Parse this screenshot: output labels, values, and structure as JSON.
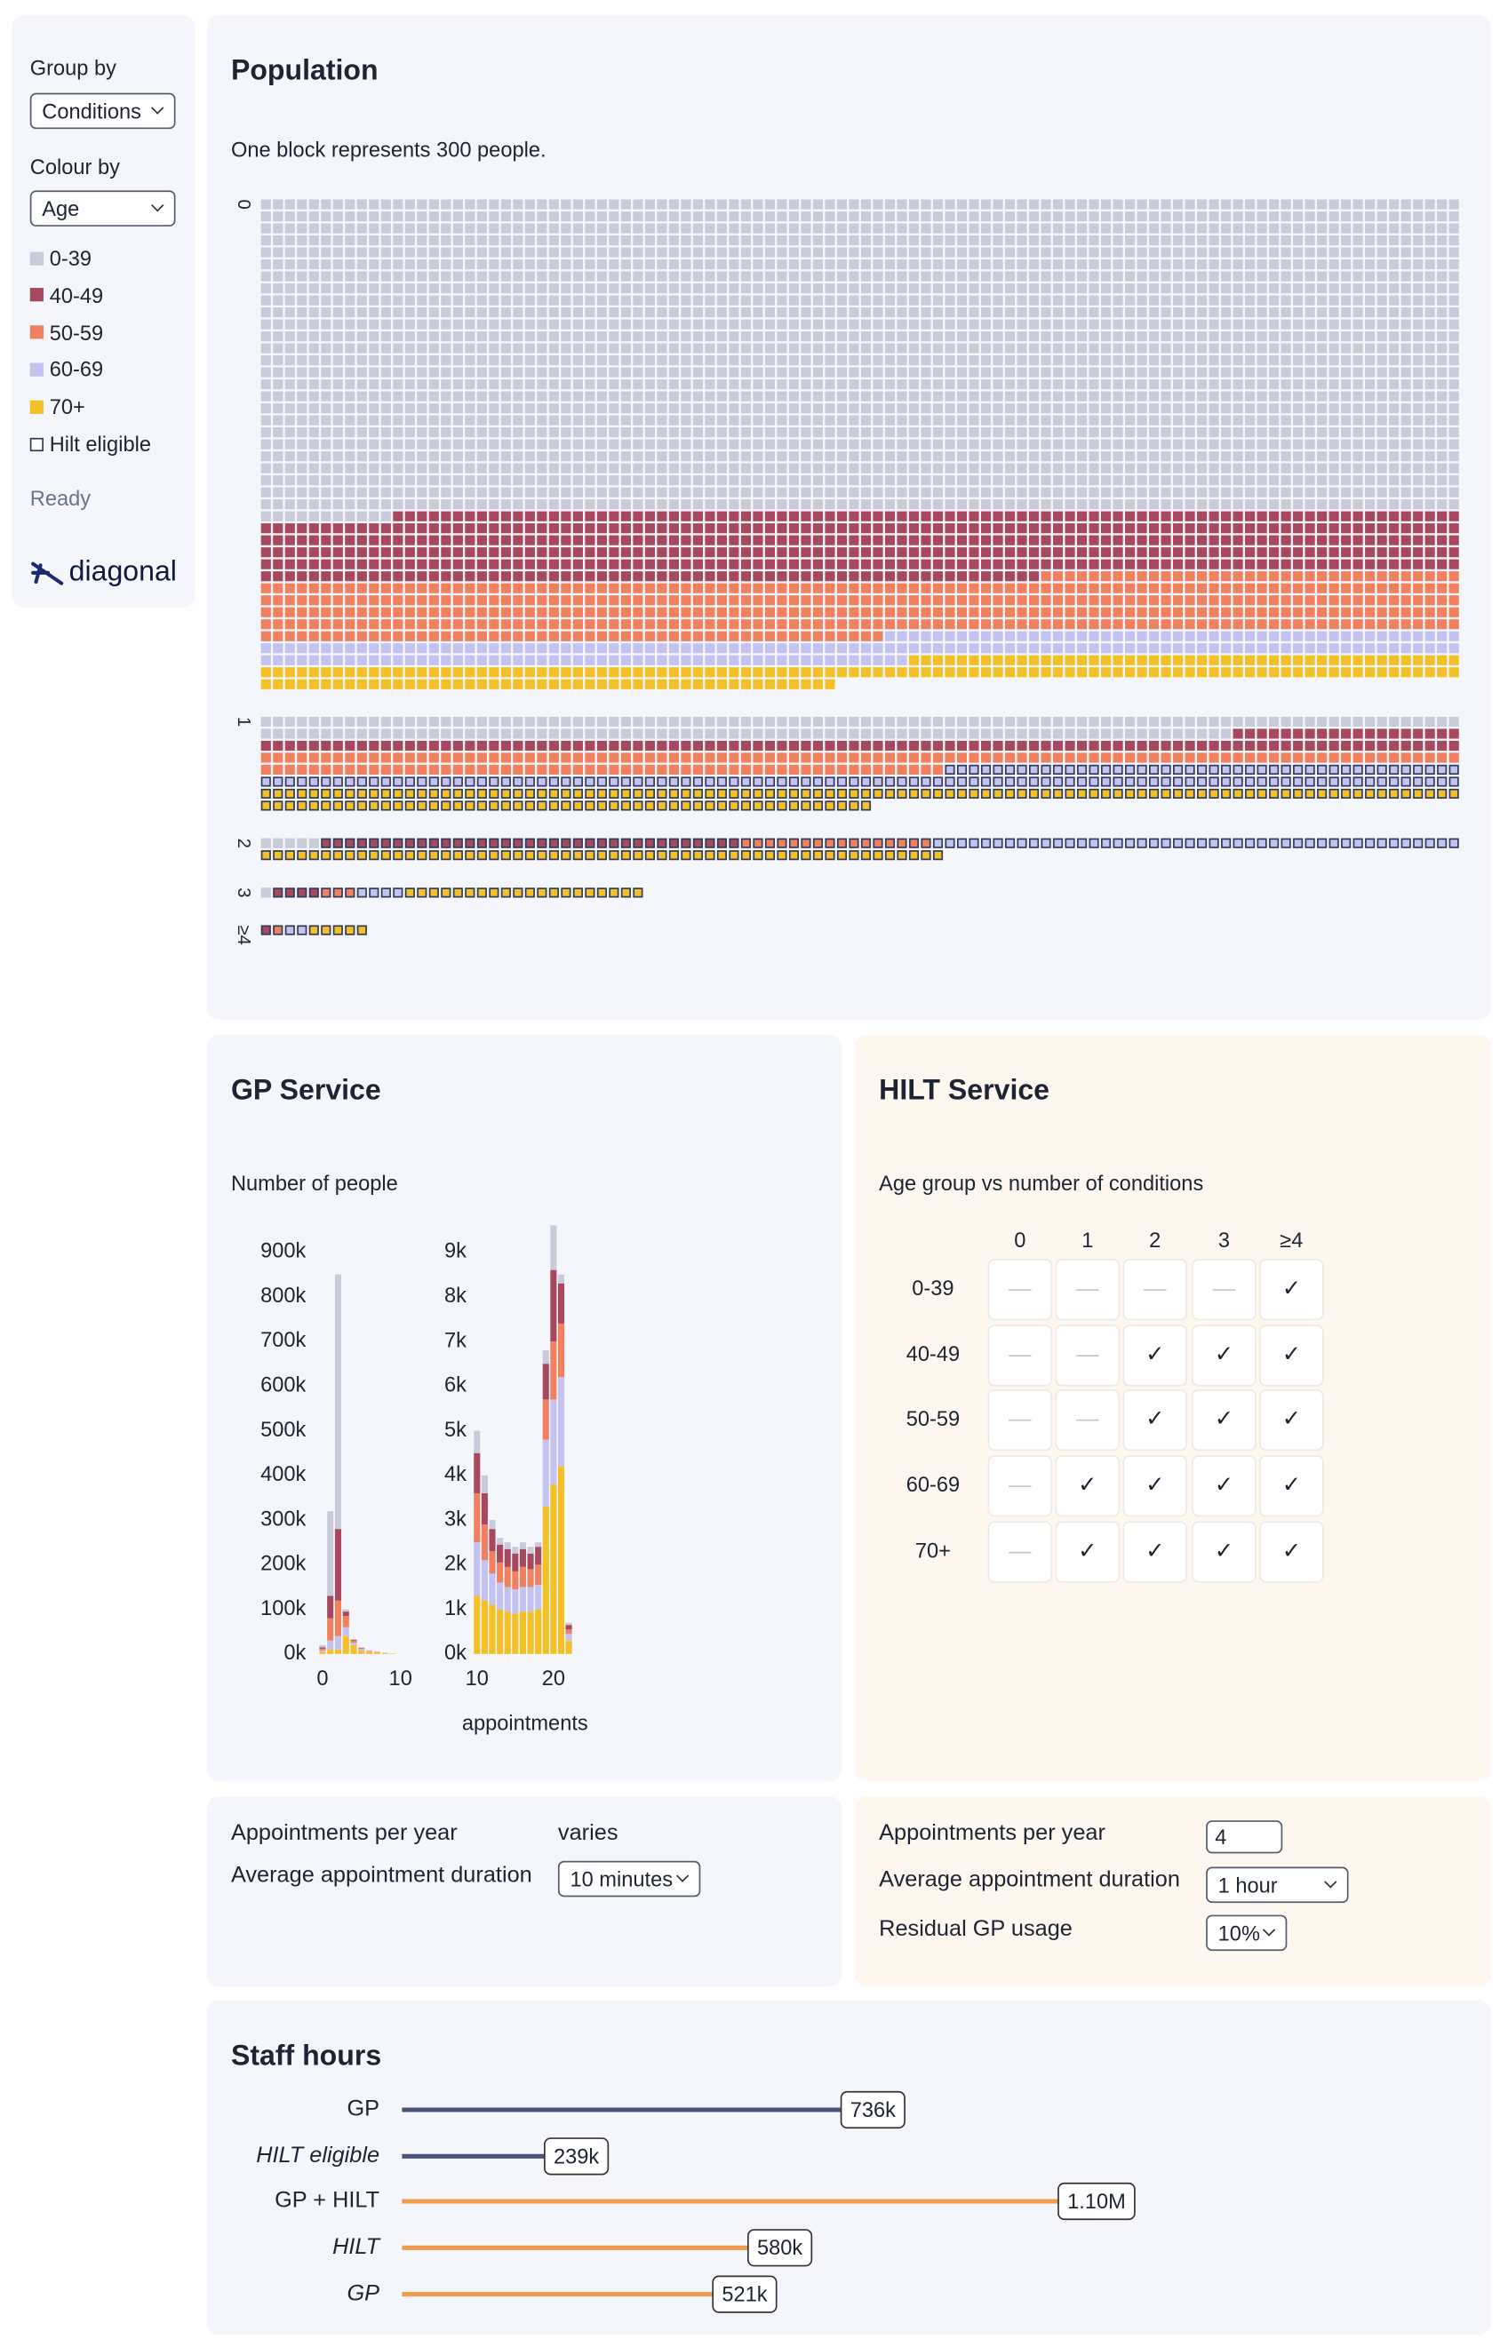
{
  "sidebar": {
    "group_by_label": "Group by",
    "group_by": "Conditions",
    "colour_by_label": "Colour by",
    "colour_by": "Age",
    "status": "Ready",
    "logo": "diagonal"
  },
  "gp_service": {
    "title": "GP Service",
    "subtitle": "Number of people",
    "x_label": "appointments"
  },
  "hilt_service": {
    "title": "HILT Service",
    "subtitle": "Age group vs number of conditions",
    "columns": [
      "0",
      "1",
      "2",
      "3",
      "≥4"
    ],
    "rows": [
      {
        "label": "0-39",
        "cells": [
          "—",
          "—",
          "—",
          "—",
          "✓"
        ]
      },
      {
        "label": "40-49",
        "cells": [
          "—",
          "—",
          "✓",
          "✓",
          "✓"
        ]
      },
      {
        "label": "50-59",
        "cells": [
          "—",
          "—",
          "✓",
          "✓",
          "✓"
        ]
      },
      {
        "label": "60-69",
        "cells": [
          "—",
          "✓",
          "✓",
          "✓",
          "✓"
        ]
      },
      {
        "label": "70+",
        "cells": [
          "—",
          "✓",
          "✓",
          "✓",
          "✓"
        ]
      }
    ]
  },
  "gp_controls": {
    "rows": [
      {
        "label": "Appointments per year",
        "value": "varies"
      },
      {
        "label": "Average appointment duration",
        "value": "10 minutes"
      }
    ]
  },
  "hilt_controls": {
    "rows": [
      {
        "label": "Appointments per year",
        "value": "4"
      },
      {
        "label": "Average appointment duration",
        "value": "1 hour"
      },
      {
        "label": "Residual GP usage",
        "value": "10%"
      }
    ]
  },
  "chart_data": [
    {
      "type": "waffle",
      "title": "Population",
      "subtitle": "One block represents 300 people.",
      "categories": [
        "0",
        "1",
        "2",
        "3",
        "≥4"
      ],
      "series": [
        {
          "name": "0-39",
          "color": "#c9cbd9",
          "values": [
            2611,
            181,
            5,
            1,
            0
          ],
          "eligible": [
            false,
            false,
            false,
            false,
            true
          ]
        },
        {
          "name": "40-49",
          "color": "#a8485e",
          "values": [
            554,
            119,
            35,
            4,
            1
          ],
          "eligible": [
            false,
            false,
            true,
            true,
            true
          ]
        },
        {
          "name": "50-59",
          "color": "#f0805e",
          "values": [
            487,
            157,
            16,
            3,
            1
          ],
          "eligible": [
            false,
            false,
            true,
            true,
            true
          ]
        },
        {
          "name": "60-69",
          "color": "#c4c2f0",
          "values": [
            202,
            143,
            44,
            4,
            2
          ],
          "eligible": [
            false,
            true,
            true,
            true,
            true
          ]
        },
        {
          "name": "70+",
          "color": "#f4c025",
          "values": [
            194,
            151,
            57,
            20,
            5
          ],
          "eligible": [
            false,
            true,
            true,
            true,
            true
          ]
        }
      ],
      "outline_name": "Hilt eligible",
      "outline_color": "#2e3a5c"
    },
    {
      "type": "stacked-histogram",
      "x": [
        0,
        1,
        2,
        3,
        4,
        5,
        6,
        7,
        8,
        9
      ],
      "xlim": [
        -1,
        10.5
      ],
      "xticks": [
        0,
        10
      ],
      "ylim": [
        0,
        900000
      ],
      "yticks": [
        {
          "value": 0,
          "label": "0k"
        },
        {
          "value": 100000,
          "label": "100k"
        },
        {
          "value": 200000,
          "label": "200k"
        },
        {
          "value": 300000,
          "label": "300k"
        },
        {
          "value": 400000,
          "label": "400k"
        },
        {
          "value": 500000,
          "label": "500k"
        },
        {
          "value": 600000,
          "label": "600k"
        },
        {
          "value": 700000,
          "label": "700k"
        },
        {
          "value": 800000,
          "label": "800k"
        },
        {
          "value": 900000,
          "label": "900k"
        }
      ],
      "series": [
        {
          "color": "#f4c025",
          "values": [
            5000,
            10000,
            10000,
            40000,
            20000,
            8000,
            5000,
            3000,
            2000,
            1000
          ]
        },
        {
          "color": "#c4c2f0",
          "values": [
            3000,
            20000,
            30000,
            20000,
            5000,
            3000,
            2000,
            1000,
            1000,
            0
          ]
        },
        {
          "color": "#f0805e",
          "values": [
            4000,
            50000,
            80000,
            25000,
            5000,
            2000,
            1000,
            1000,
            0,
            0
          ]
        },
        {
          "color": "#a8485e",
          "values": [
            3000,
            50000,
            160000,
            10000,
            2000,
            1000,
            0,
            0,
            0,
            0
          ]
        },
        {
          "color": "#c9cbd9",
          "values": [
            5000,
            190000,
            570000,
            5000,
            0,
            0,
            0,
            0,
            0,
            0
          ]
        }
      ]
    },
    {
      "type": "stacked-histogram",
      "x": [
        10,
        11,
        12,
        13,
        14,
        15,
        16,
        17,
        18,
        19,
        20,
        21,
        22
      ],
      "xlim": [
        9,
        24
      ],
      "xticks": [
        10,
        20
      ],
      "ylim": [
        0,
        9800
      ],
      "yticks": [
        {
          "value": 0,
          "label": "0k"
        },
        {
          "value": 1000,
          "label": "1k"
        },
        {
          "value": 2000,
          "label": "2k"
        },
        {
          "value": 3000,
          "label": "3k"
        },
        {
          "value": 4000,
          "label": "4k"
        },
        {
          "value": 5000,
          "label": "5k"
        },
        {
          "value": 6000,
          "label": "6k"
        },
        {
          "value": 7000,
          "label": "7k"
        },
        {
          "value": 8000,
          "label": "8k"
        },
        {
          "value": 9000,
          "label": "9k"
        }
      ],
      "series": [
        {
          "color": "#f4c025",
          "values": [
            1300,
            1200,
            1100,
            1000,
            950,
            900,
            950,
            950,
            1000,
            3300,
            3800,
            4200,
            300
          ]
        },
        {
          "color": "#c4c2f0",
          "values": [
            1200,
            900,
            700,
            600,
            550,
            550,
            550,
            550,
            550,
            1500,
            1900,
            2000,
            150
          ]
        },
        {
          "color": "#f0805e",
          "values": [
            1100,
            800,
            500,
            450,
            450,
            400,
            450,
            400,
            450,
            900,
            1300,
            1200,
            100
          ]
        },
        {
          "color": "#a8485e",
          "values": [
            900,
            700,
            500,
            400,
            400,
            400,
            400,
            350,
            400,
            800,
            1600,
            900,
            100
          ]
        },
        {
          "color": "#c9cbd9",
          "values": [
            500,
            400,
            200,
            150,
            150,
            150,
            150,
            150,
            100,
            300,
            1000,
            200,
            50
          ]
        }
      ]
    },
    {
      "type": "lollipop",
      "title": "Staff hours",
      "categories": [
        "GP",
        "HILT eligible",
        "GP + HILT",
        "HILT",
        "GP"
      ],
      "values": [
        736000,
        239000,
        1100000,
        580000,
        521000
      ],
      "value_labels": [
        "736k",
        "239k",
        "1.10M",
        "580k",
        "521k"
      ],
      "colors": [
        "#4a5378",
        "#4a5378",
        "#f29b4c",
        "#f29b4c",
        "#f29b4c"
      ],
      "italic": [
        false,
        true,
        false,
        true,
        true
      ],
      "xlim": [
        0,
        1800000
      ]
    }
  ]
}
